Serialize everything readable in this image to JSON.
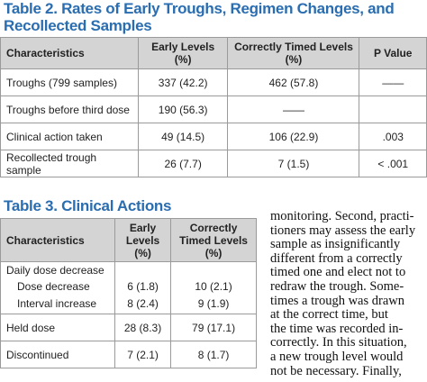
{
  "table2": {
    "title": "Table 2. Rates of Early Troughs, Regimen Changes, and Recollected Samples",
    "headers": [
      "Characteristics",
      "Early Levels (%)",
      "Correctly Timed Levels (%)",
      "P Value"
    ],
    "rows": [
      [
        "Troughs (799 samples)",
        "337 (42.2)",
        "462 (57.8)",
        "——"
      ],
      [
        "Troughs before third dose",
        "190 (56.3)",
        "——",
        ""
      ],
      [
        "Clinical action taken",
        "49 (14.5)",
        "106 (22.9)",
        ".003"
      ],
      [
        "Recollected trough sample",
        "26 (7.7)",
        "7 (1.5)",
        "< .001"
      ]
    ]
  },
  "table3": {
    "title": "Table 3. Clinical Actions",
    "headers": [
      "Characteristics",
      "Early Levels (%)",
      "Correctly Timed Levels (%)"
    ],
    "rows": [
      [
        "Daily dose decrease",
        "",
        ""
      ],
      [
        "Dose decrease",
        "6 (1.8)",
        "10 (2.1)"
      ],
      [
        "Interval increase",
        "8 (2.4)",
        "9 (1.9)"
      ],
      [
        "Held dose",
        "28 (8.3)",
        "79 (17.1)"
      ],
      [
        "Discontinued",
        "7 (2.1)",
        "8 (1.7)"
      ]
    ]
  },
  "body_text": [
    "monitoring. Second, practi-",
    "tioners may assess the early",
    "sample as insignificantly",
    "different from a correctly",
    "timed one and elect not to",
    "redraw the trough. Some-",
    "times a trough was drawn",
    "at the correct time, but",
    "the time was recorded in-",
    "correctly. In this situation,",
    "a new trough level would",
    "not be necessary. Finally,"
  ]
}
